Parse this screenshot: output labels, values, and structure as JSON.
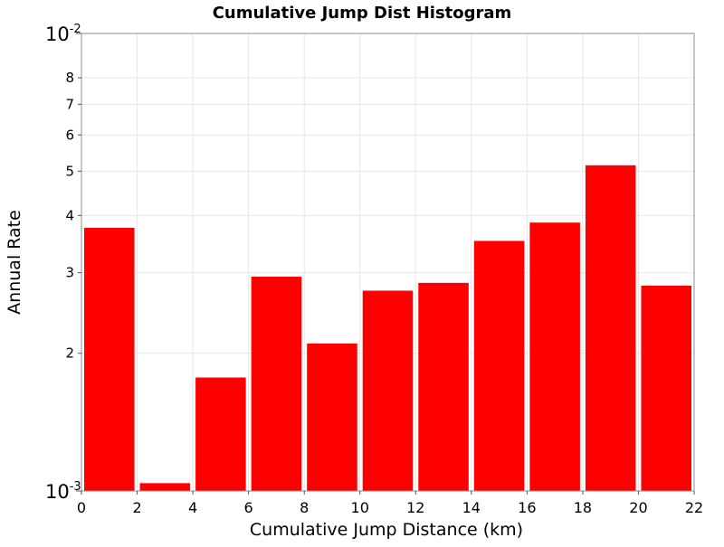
{
  "chart_data": {
    "type": "bar",
    "title": "Cumulative Jump Dist Histogram",
    "xlabel": "Cumulative Jump Distance (km)",
    "ylabel": "Annual Rate",
    "xlim": [
      0,
      22
    ],
    "ylim": [
      0.001,
      0.01
    ],
    "yscale": "log",
    "grid": true,
    "bar_color": "#ff0000",
    "x_ticks": [
      "0",
      "2",
      "4",
      "6",
      "8",
      "10",
      "12",
      "14",
      "16",
      "18",
      "20",
      "22"
    ],
    "y_decade_ticks": [
      {
        "value": 0.001,
        "base": "10",
        "exp": "-3"
      },
      {
        "value": 0.01,
        "base": "10",
        "exp": "-2"
      }
    ],
    "y_minor_ticks": [
      {
        "value": 0.002,
        "label": "2"
      },
      {
        "value": 0.003,
        "label": "3"
      },
      {
        "value": 0.004,
        "label": "4"
      },
      {
        "value": 0.005,
        "label": "5"
      },
      {
        "value": 0.006,
        "label": "6"
      },
      {
        "value": 0.007,
        "label": "7"
      },
      {
        "value": 0.008,
        "label": "8"
      }
    ],
    "bins": [
      {
        "x0": 0,
        "x1": 2,
        "value": 0.00376
      },
      {
        "x0": 2,
        "x1": 4,
        "value": 0.00104
      },
      {
        "x0": 4,
        "x1": 6,
        "value": 0.00177
      },
      {
        "x0": 6,
        "x1": 8,
        "value": 0.00294
      },
      {
        "x0": 8,
        "x1": 10,
        "value": 0.0021
      },
      {
        "x0": 10,
        "x1": 12,
        "value": 0.00274
      },
      {
        "x0": 12,
        "x1": 14,
        "value": 0.00285
      },
      {
        "x0": 14,
        "x1": 16,
        "value": 0.00352
      },
      {
        "x0": 16,
        "x1": 18,
        "value": 0.00386
      },
      {
        "x0": 18,
        "x1": 20,
        "value": 0.00515
      },
      {
        "x0": 20,
        "x1": 22,
        "value": 0.00281
      }
    ]
  }
}
